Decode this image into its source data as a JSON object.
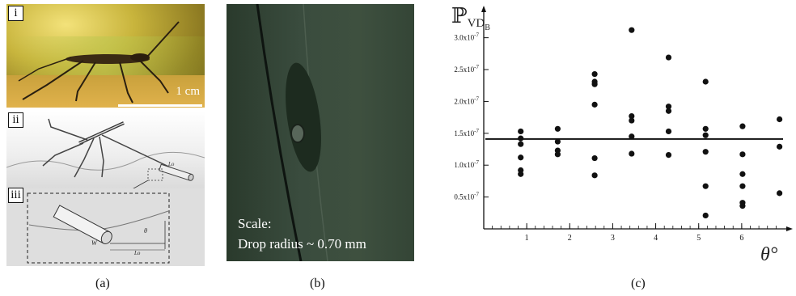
{
  "panel_a": {
    "caption": "(a)",
    "sublabels": [
      "i",
      "ii",
      "iii"
    ],
    "scale_text": "1 cm",
    "inset_labels": {
      "lo_top": "Lo",
      "w": "W",
      "theta": "θ",
      "lo_bottom": "Lo"
    }
  },
  "panel_b": {
    "caption": "(b)",
    "scale_line1": "Scale:",
    "scale_line2": "Drop radius ~ 0.70 mm"
  },
  "panel_c": {
    "caption": "(c)"
  },
  "chart_data": {
    "type": "scatter",
    "ylabel": "ℙ",
    "ylabel_subscript": "VD",
    "ylabel_subsubscript": "B",
    "xlabel": "θ°",
    "xlim": [
      0,
      7
    ],
    "ylim": [
      0,
      3.3e-07
    ],
    "x_tick_labels": [
      "1",
      "2",
      "3",
      "4",
      "5",
      "6"
    ],
    "x_ticks": [
      1,
      2,
      3,
      4,
      5,
      6
    ],
    "y_ticks": [
      5e-08,
      1e-07,
      1.5e-07,
      2e-07,
      2.5e-07,
      3e-07
    ],
    "y_tick_labels": [
      {
        "mant": "0.5x10",
        "exp": "-7"
      },
      {
        "mant": "1.0x10",
        "exp": "-7"
      },
      {
        "mant": "1.5x10",
        "exp": "-7"
      },
      {
        "mant": "2.0x10",
        "exp": "-7"
      },
      {
        "mant": "2.5x10",
        "exp": "-7"
      },
      {
        "mant": "3.0x10",
        "exp": "-7"
      }
    ],
    "reference_line_y": 1.41e-07,
    "points": [
      [
        0.86,
        1.53e-07
      ],
      [
        0.86,
        1.42e-07
      ],
      [
        0.86,
        1.33e-07
      ],
      [
        0.86,
        1.12e-07
      ],
      [
        0.86,
        9.2e-08
      ],
      [
        0.86,
        8.6e-08
      ],
      [
        1.72,
        1.57e-07
      ],
      [
        1.72,
        1.37e-07
      ],
      [
        1.72,
        1.23e-07
      ],
      [
        1.72,
        1.17e-07
      ],
      [
        2.58,
        2.43e-07
      ],
      [
        2.58,
        2.31e-07
      ],
      [
        2.58,
        2.27e-07
      ],
      [
        2.58,
        1.95e-07
      ],
      [
        2.58,
        1.11e-07
      ],
      [
        2.58,
        8.4e-08
      ],
      [
        3.44,
        3.12e-07
      ],
      [
        3.44,
        1.77e-07
      ],
      [
        3.44,
        1.7e-07
      ],
      [
        3.44,
        1.45e-07
      ],
      [
        3.44,
        1.18e-07
      ],
      [
        4.3,
        2.69e-07
      ],
      [
        4.3,
        1.92e-07
      ],
      [
        4.3,
        1.85e-07
      ],
      [
        4.3,
        1.53e-07
      ],
      [
        4.3,
        1.16e-07
      ],
      [
        5.16,
        2.31e-07
      ],
      [
        5.16,
        1.57e-07
      ],
      [
        5.16,
        1.47e-07
      ],
      [
        5.16,
        1.21e-07
      ],
      [
        5.16,
        6.7e-08
      ],
      [
        5.16,
        2.1e-08
      ],
      [
        6.02,
        1.61e-07
      ],
      [
        6.02,
        1.17e-07
      ],
      [
        6.02,
        8.6e-08
      ],
      [
        6.02,
        6.7e-08
      ],
      [
        6.02,
        4.1e-08
      ],
      [
        6.02,
        3.6e-08
      ],
      [
        6.88,
        1.72e-07
      ],
      [
        6.88,
        1.29e-07
      ],
      [
        6.88,
        5.6e-08
      ]
    ]
  }
}
